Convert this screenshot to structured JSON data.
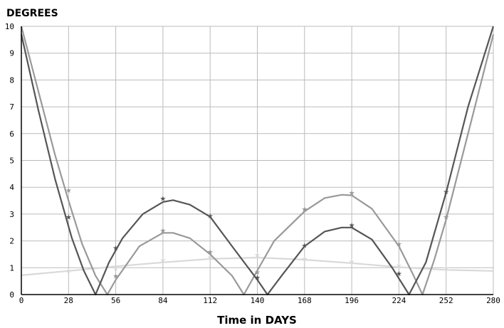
{
  "chart_data": {
    "type": "line",
    "ylabel": "DEGREES",
    "xlabel": "Time in DAYS",
    "xlim": [
      0,
      280
    ],
    "ylim": [
      0,
      10
    ],
    "x_ticks": [
      "0",
      "28",
      "56",
      "84",
      "112",
      "140",
      "168",
      "196",
      "224",
      "252",
      "280"
    ],
    "y_ticks": [
      "0",
      "1",
      "2",
      "3",
      "4",
      "5",
      "6",
      "7",
      "8",
      "9",
      "10"
    ],
    "grid": true,
    "colors": {
      "dark": "#555555",
      "medium": "#999999",
      "light": "#d9d9d9",
      "grid": "#bbbbbb",
      "axis": "#000000"
    },
    "series": [
      {
        "color": "dark",
        "curve": [
          [
            0,
            9.7
          ],
          [
            10,
            6.9
          ],
          [
            20,
            4.3
          ],
          [
            30,
            2.1
          ],
          [
            37,
            0.9
          ],
          [
            44,
            0
          ],
          [
            52,
            1.2
          ],
          [
            60,
            2.1
          ],
          [
            72,
            3.0
          ],
          [
            84,
            3.45
          ],
          [
            90,
            3.52
          ],
          [
            100,
            3.35
          ],
          [
            112,
            2.9
          ],
          [
            125,
            1.8
          ],
          [
            140,
            0.55
          ],
          [
            146,
            0
          ],
          [
            155,
            0.75
          ],
          [
            168,
            1.8
          ],
          [
            180,
            2.35
          ],
          [
            190,
            2.5
          ],
          [
            196,
            2.5
          ],
          [
            208,
            2.05
          ],
          [
            220,
            1.0
          ],
          [
            230,
            0
          ],
          [
            240,
            1.2
          ],
          [
            252,
            3.8
          ],
          [
            265,
            7.0
          ],
          [
            280,
            10
          ]
        ],
        "markers": [
          [
            28,
            2.9
          ],
          [
            56,
            1.75
          ],
          [
            84,
            3.6
          ],
          [
            112,
            2.95
          ],
          [
            140,
            0.65
          ],
          [
            168,
            1.85
          ],
          [
            196,
            2.6
          ],
          [
            224,
            0.8
          ],
          [
            252,
            3.85
          ]
        ]
      },
      {
        "color": "medium",
        "curve": [
          [
            0,
            10
          ],
          [
            10,
            7.6
          ],
          [
            20,
            5.2
          ],
          [
            28,
            3.5
          ],
          [
            36,
            1.9
          ],
          [
            44,
            0.7
          ],
          [
            51,
            0
          ],
          [
            56,
            0.55
          ],
          [
            70,
            1.8
          ],
          [
            84,
            2.3
          ],
          [
            90,
            2.3
          ],
          [
            100,
            2.1
          ],
          [
            112,
            1.5
          ],
          [
            125,
            0.7
          ],
          [
            132,
            0
          ],
          [
            140,
            0.9
          ],
          [
            150,
            2.0
          ],
          [
            168,
            3.1
          ],
          [
            180,
            3.6
          ],
          [
            190,
            3.72
          ],
          [
            196,
            3.7
          ],
          [
            208,
            3.2
          ],
          [
            224,
            1.8
          ],
          [
            232,
            0.8
          ],
          [
            238,
            0
          ],
          [
            245,
            1.3
          ],
          [
            252,
            2.8
          ],
          [
            265,
            6.0
          ],
          [
            280,
            9.7
          ]
        ],
        "markers": [
          [
            28,
            3.9
          ],
          [
            56,
            0.7
          ],
          [
            84,
            2.4
          ],
          [
            112,
            1.6
          ],
          [
            140,
            0.85
          ],
          [
            168,
            3.2
          ],
          [
            196,
            3.8
          ],
          [
            224,
            1.9
          ],
          [
            252,
            2.9
          ]
        ]
      },
      {
        "color": "light",
        "curve": [
          [
            0,
            0.72
          ],
          [
            28,
            0.88
          ],
          [
            56,
            1.05
          ],
          [
            84,
            1.2
          ],
          [
            112,
            1.33
          ],
          [
            140,
            1.38
          ],
          [
            168,
            1.3
          ],
          [
            196,
            1.17
          ],
          [
            224,
            1.02
          ],
          [
            252,
            0.92
          ],
          [
            280,
            0.88
          ]
        ],
        "markers": [
          [
            28,
            0.9
          ],
          [
            56,
            1.0
          ],
          [
            84,
            1.3
          ],
          [
            112,
            1.4
          ],
          [
            140,
            1.5
          ],
          [
            168,
            1.35
          ],
          [
            196,
            1.25
          ],
          [
            224,
            1.1
          ],
          [
            252,
            1.0
          ]
        ]
      }
    ]
  }
}
